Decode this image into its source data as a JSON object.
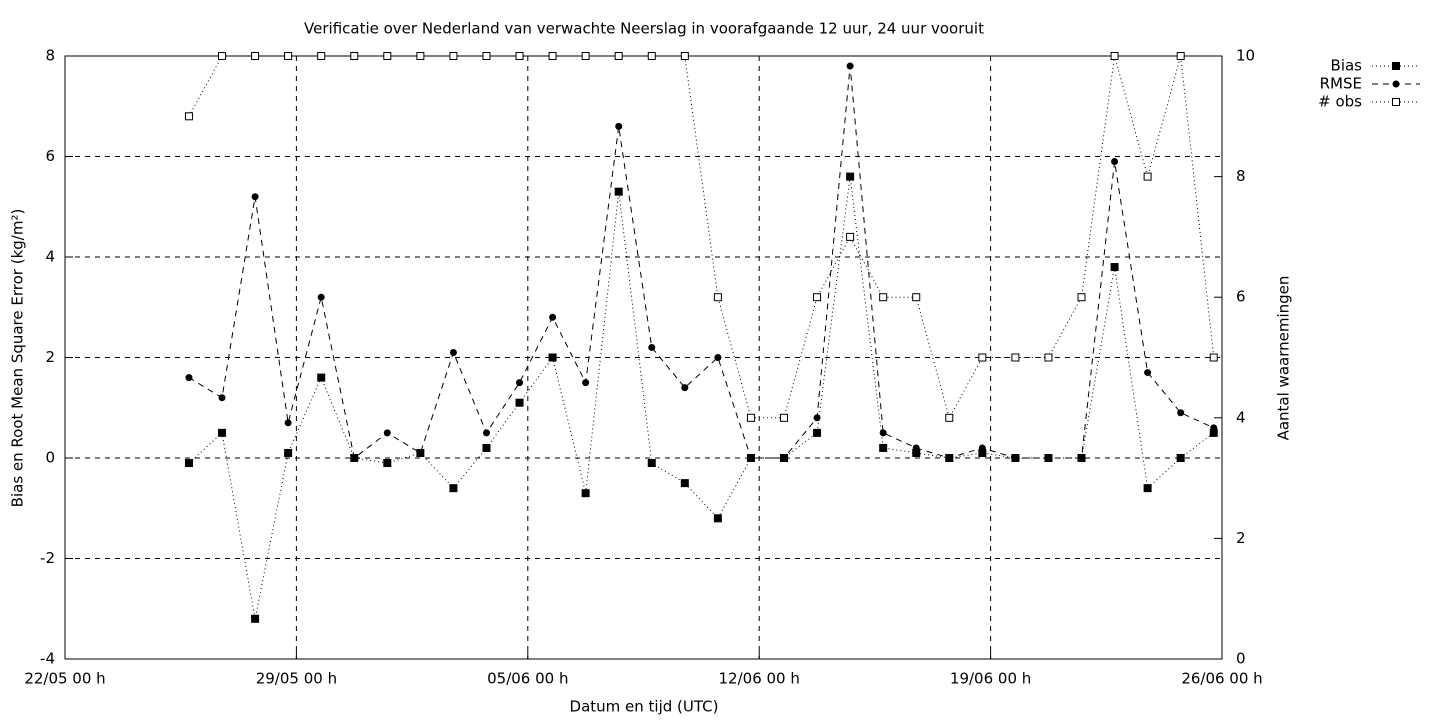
{
  "chart_data": {
    "type": "line",
    "title": "Verificatie over Nederland van verwachte Neerslag in voorafgaande 12 uur, 24 uur vooruit",
    "x_label": "Datum en tijd (UTC)",
    "y_label": "Bias en Root Mean Square Error (kg/m²)",
    "y2_label": "Aantal waarnemingen",
    "x": [
      3.75,
      4.75,
      5.75,
      6.75,
      7.75,
      8.75,
      9.75,
      10.75,
      11.75,
      12.75,
      13.75,
      14.75,
      15.75,
      16.75,
      17.75,
      18.75,
      19.75,
      20.75,
      21.75,
      22.75,
      23.75,
      24.75,
      25.75,
      26.75,
      27.75,
      28.75,
      29.75,
      30.75,
      31.75,
      32.75,
      33.75,
      34.75
    ],
    "xlim": [
      0,
      35
    ],
    "xticks": [
      {
        "value": 0,
        "label": "22/05 00 h"
      },
      {
        "value": 7,
        "label": "29/05 00 h"
      },
      {
        "value": 14,
        "label": "05/06 00 h"
      },
      {
        "value": 21,
        "label": "12/06 00 h"
      },
      {
        "value": 28,
        "label": "19/06 00 h"
      },
      {
        "value": 35,
        "label": "26/06 00 h"
      }
    ],
    "ylim": [
      -4,
      8
    ],
    "yticks": [
      -4,
      -2,
      0,
      2,
      4,
      6,
      8
    ],
    "y2lim": [
      0,
      10
    ],
    "y2ticks": [
      0,
      2,
      4,
      6,
      8,
      10
    ],
    "grid": true,
    "legend": "outside-top-right",
    "series": [
      {
        "name": "Bias",
        "color": "#000000",
        "dash": "dotted",
        "marker": "square-filled",
        "values": [
          -0.1,
          0.5,
          -3.2,
          0.1,
          1.6,
          0,
          -0.1,
          0.1,
          -0.6,
          0.2,
          1.1,
          2.0,
          -0.7,
          5.3,
          -0.1,
          -0.5,
          -1.2,
          0,
          0,
          0.5,
          5.6,
          0.2,
          0.1,
          0,
          0.1,
          0,
          0,
          0,
          3.8,
          -0.6,
          0,
          0.5
        ]
      },
      {
        "name": "RMSE",
        "color": "#000000",
        "dash": "dashed",
        "marker": "circle",
        "values": [
          1.6,
          1.2,
          5.2,
          0.7,
          3.2,
          0,
          0.5,
          0.1,
          2.1,
          0.5,
          1.5,
          2.8,
          1.5,
          6.6,
          2.2,
          1.4,
          2.0,
          0,
          0,
          0.8,
          7.8,
          0.5,
          0.2,
          0,
          0.2,
          0,
          0,
          0,
          5.9,
          1.7,
          0.9,
          0.6
        ]
      },
      {
        "name": "# obs",
        "color": "#000000",
        "dash": "dotted",
        "marker": "square-open",
        "axis": "y2",
        "values": [
          9,
          10,
          10,
          10,
          10,
          10,
          10,
          10,
          10,
          10,
          10,
          10,
          10,
          10,
          10,
          10,
          6,
          4,
          4,
          6,
          7,
          6,
          6,
          4,
          5,
          5,
          5,
          6,
          10,
          8,
          10,
          5
        ]
      }
    ]
  }
}
